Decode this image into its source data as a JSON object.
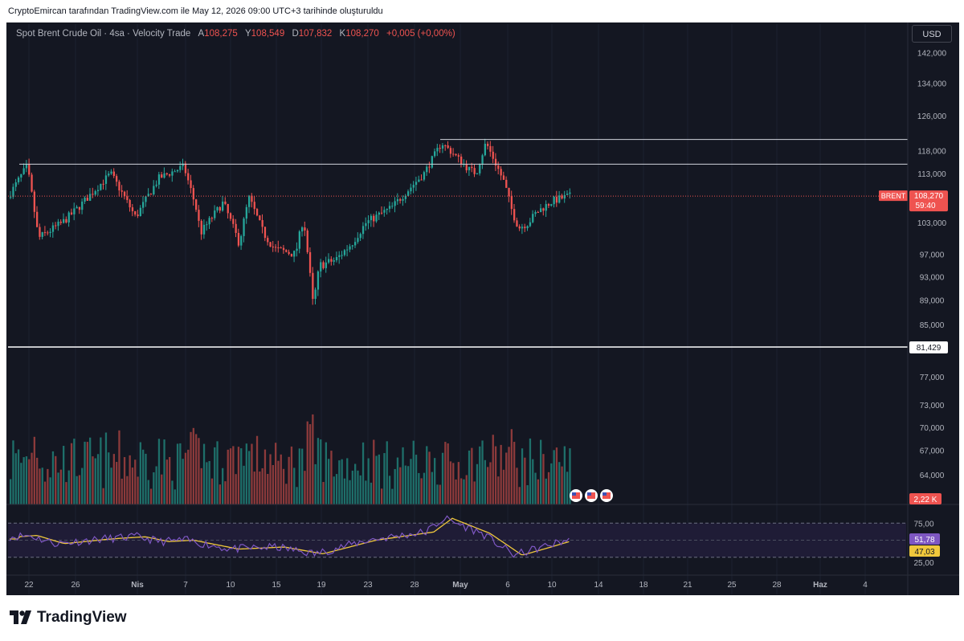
{
  "attribution": "CryptoEmircan tarafından TradingView.com ile May 12, 2026 09:00 UTC+3 tarihinde oluşturuldu",
  "header": {
    "symbol": "Spot Brent Crude Oil · 4sa · Velocity Trade",
    "open_label": "A",
    "open": "108,275",
    "high_label": "Y",
    "high": "108,549",
    "low_label": "D",
    "low": "107,832",
    "close_label": "K",
    "close": "108,270",
    "change": "+0,005 (+0,00%)"
  },
  "currency_button": "USD",
  "price_axis": {
    "ticks": [
      "142,000",
      "134,000",
      "126,000",
      "118,000",
      "113,000",
      "108,000",
      "103,000",
      "97,000",
      "93,000",
      "89,000",
      "85,000",
      "77,000",
      "73,000",
      "70,000",
      "67,000",
      "64,000"
    ],
    "current_symbol": "BRENT",
    "current_price": "108,270",
    "countdown": "59:40",
    "line_price": "81,429",
    "volume_label": "2,22 K"
  },
  "rsi_axis": {
    "ticks": [
      "75,00",
      "25,00"
    ],
    "rsi_value": "51,78",
    "ma_value": "47,03"
  },
  "time_axis": [
    "22",
    "26",
    "Nis",
    "7",
    "10",
    "15",
    "19",
    "23",
    "28",
    "May",
    "6",
    "10",
    "14",
    "18",
    "21",
    "25",
    "28",
    "Haz",
    "4"
  ],
  "brand": "TradingView",
  "colors": {
    "background": "#141722",
    "up": "#26a69a",
    "down": "#ef5350",
    "rsi_line": "#7e57c2",
    "rsi_ma": "#f0c83c"
  },
  "chart_data": [
    {
      "type": "candlestick",
      "title": "Spot Brent Crude Oil · 4sa · Velocity Trade",
      "y_scale": "log",
      "horizontal_levels": [
        120.5,
        115,
        81.429
      ],
      "key_points": [
        {
          "x": "22",
          "price": 114.6
        },
        {
          "x": "26",
          "price": 100
        },
        {
          "x": "Nis",
          "price": 113
        },
        {
          "x": "Nis",
          "price": 104
        },
        {
          "x": "7",
          "price": 114.5
        },
        {
          "x": "10",
          "price": 99
        },
        {
          "x": "15",
          "price": 98
        },
        {
          "x": "19",
          "price": 88
        },
        {
          "x": "23",
          "price": 103
        },
        {
          "x": "28",
          "price": 113
        },
        {
          "x": "May",
          "price": 119.7
        },
        {
          "x": "May",
          "price": 114
        },
        {
          "x": "May",
          "price": 119.8
        },
        {
          "x": "6",
          "price": 105
        },
        {
          "x": "6",
          "price": 102
        },
        {
          "x": "10",
          "price": 107.3
        },
        {
          "x": "10",
          "price": 108.27
        }
      ]
    },
    {
      "type": "bar",
      "title": "Volume"
    },
    {
      "type": "line",
      "title": "RSI",
      "ylim": [
        0,
        100
      ],
      "bands": [
        75,
        25
      ],
      "key_points": [
        {
          "x": "22",
          "rsi": 57
        },
        {
          "x": "26",
          "rsi": 45
        },
        {
          "x": "Nis",
          "rsi": 55
        },
        {
          "x": "7",
          "rsi": 50
        },
        {
          "x": "10",
          "rsi": 37
        },
        {
          "x": "19",
          "rsi": 30
        },
        {
          "x": "28",
          "rsi": 62
        },
        {
          "x": "May",
          "rsi": 82
        },
        {
          "x": "6",
          "rsi": 28
        },
        {
          "x": "10",
          "rsi": 51.78
        }
      ],
      "ma_last": 47.03,
      "rsi_last": 51.78
    }
  ]
}
